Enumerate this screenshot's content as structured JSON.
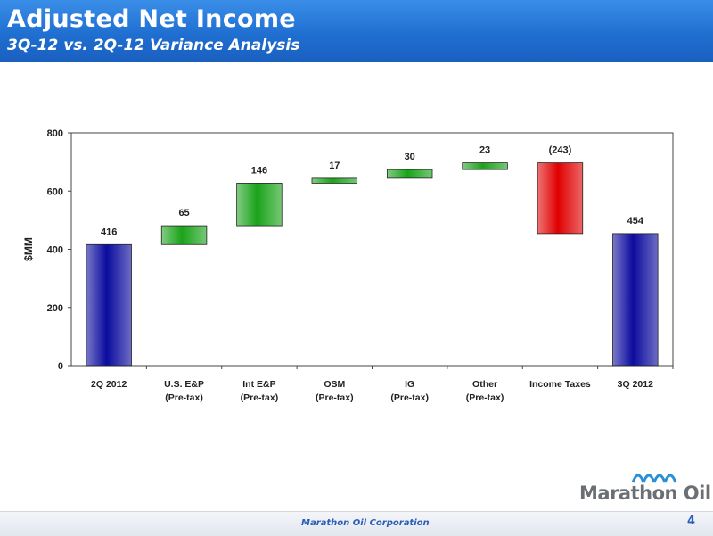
{
  "header": {
    "title": "Adjusted Net Income",
    "subtitle": "3Q-12 vs. 2Q-12 Variance Analysis"
  },
  "footer": {
    "company": "Marathon Oil Corporation",
    "page_number": "4"
  },
  "logo": {
    "text": "Marathon Oil",
    "icon": "marathon-wave-icon"
  },
  "colors": {
    "total": "#0b0b9e",
    "increase": "#1aa31a",
    "decrease": "#e00000",
    "header": "#1f6fd1"
  },
  "chart_data": {
    "type": "bar",
    "subtype": "waterfall",
    "categories": [
      [
        "2Q 2012"
      ],
      [
        "U.S. E&P",
        "(Pre-tax)"
      ],
      [
        "Int E&P",
        "(Pre-tax)"
      ],
      [
        "OSM",
        "(Pre-tax)"
      ],
      [
        "IG",
        "(Pre-tax)"
      ],
      [
        "Other",
        "(Pre-tax)"
      ],
      [
        "Income Taxes"
      ],
      [
        "3Q 2012"
      ]
    ],
    "values": [
      416,
      65,
      146,
      17,
      30,
      23,
      -243,
      454
    ],
    "bar_kinds": [
      "total",
      "increase",
      "increase",
      "increase",
      "increase",
      "increase",
      "decrease",
      "total"
    ],
    "data_labels": [
      "416",
      "65",
      "146",
      "17",
      "30",
      "23",
      "(243)",
      "454"
    ],
    "ylabel": "$MM",
    "ylim": [
      0,
      800
    ],
    "yticks": [
      "0",
      "200",
      "400",
      "600",
      "800"
    ],
    "grid": false,
    "legend": "none"
  }
}
